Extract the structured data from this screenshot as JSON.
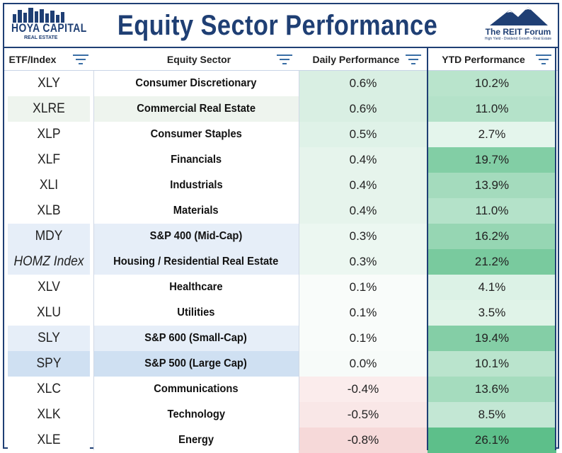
{
  "title": "Equity Sector Performance",
  "logo_left": {
    "line1": "HOYA CAPITAL",
    "line2": "REAL ESTATE"
  },
  "logo_right": {
    "line1": "The REIT Forum",
    "line2": "High Yield - Dividend Growth - Real Estate"
  },
  "icons": {
    "filter": "filter-lines-icon",
    "mountain": "mountain-icon",
    "skyline": "skyline-icon"
  },
  "colors": {
    "brand": "#1f3f74",
    "sector_highlight": "#e6eef8",
    "sector_alt": "#eef4ee",
    "spy_row": "#cfe0f2"
  },
  "chart_data": {
    "type": "table",
    "title": "Equity Sector Performance",
    "columns": [
      "ETF/Index",
      "Equity Sector",
      "Daily Performance",
      "YTD Performance"
    ],
    "rows": [
      {
        "etf": "XLY",
        "sector": "Consumer Discretionary",
        "daily": "0.6%",
        "ytd": "10.2%",
        "daily_value": 0.6,
        "ytd_value": 10.2
      },
      {
        "etf": "XLRE",
        "sector": "Commercial Real Estate",
        "daily": "0.6%",
        "ytd": "11.0%",
        "daily_value": 0.6,
        "ytd_value": 11.0
      },
      {
        "etf": "XLP",
        "sector": "Consumer Staples",
        "daily": "0.5%",
        "ytd": "2.7%",
        "daily_value": 0.5,
        "ytd_value": 2.7
      },
      {
        "etf": "XLF",
        "sector": "Financials",
        "daily": "0.4%",
        "ytd": "19.7%",
        "daily_value": 0.4,
        "ytd_value": 19.7
      },
      {
        "etf": "XLI",
        "sector": "Industrials",
        "daily": "0.4%",
        "ytd": "13.9%",
        "daily_value": 0.4,
        "ytd_value": 13.9
      },
      {
        "etf": "XLB",
        "sector": "Materials",
        "daily": "0.4%",
        "ytd": "11.0%",
        "daily_value": 0.4,
        "ytd_value": 11.0
      },
      {
        "etf": "MDY",
        "sector": "S&P 400 (Mid-Cap)",
        "daily": "0.3%",
        "ytd": "16.2%",
        "daily_value": 0.3,
        "ytd_value": 16.2
      },
      {
        "etf": "HOMZ Index",
        "sector": "Housing / Residential Real Estate",
        "daily": "0.3%",
        "ytd": "21.2%",
        "daily_value": 0.3,
        "ytd_value": 21.2,
        "italic": true
      },
      {
        "etf": "XLV",
        "sector": "Healthcare",
        "daily": "0.1%",
        "ytd": "4.1%",
        "daily_value": 0.1,
        "ytd_value": 4.1
      },
      {
        "etf": "XLU",
        "sector": "Utilities",
        "daily": "0.1%",
        "ytd": "3.5%",
        "daily_value": 0.1,
        "ytd_value": 3.5
      },
      {
        "etf": "SLY",
        "sector": "S&P 600 (Small-Cap)",
        "daily": "0.1%",
        "ytd": "19.4%",
        "daily_value": 0.1,
        "ytd_value": 19.4
      },
      {
        "etf": "SPY",
        "sector": "S&P 500 (Large Cap)",
        "daily": "0.0%",
        "ytd": "10.1%",
        "daily_value": 0.0,
        "ytd_value": 10.1
      },
      {
        "etf": "XLC",
        "sector": "Communications",
        "daily": "-0.4%",
        "ytd": "13.6%",
        "daily_value": -0.4,
        "ytd_value": 13.6
      },
      {
        "etf": "XLK",
        "sector": "Technology",
        "daily": "-0.5%",
        "ytd": "8.5%",
        "daily_value": -0.5,
        "ytd_value": 8.5
      },
      {
        "etf": "XLE",
        "sector": "Energy",
        "daily": "-0.8%",
        "ytd": "26.1%",
        "daily_value": -0.8,
        "ytd_value": 26.1
      }
    ]
  }
}
